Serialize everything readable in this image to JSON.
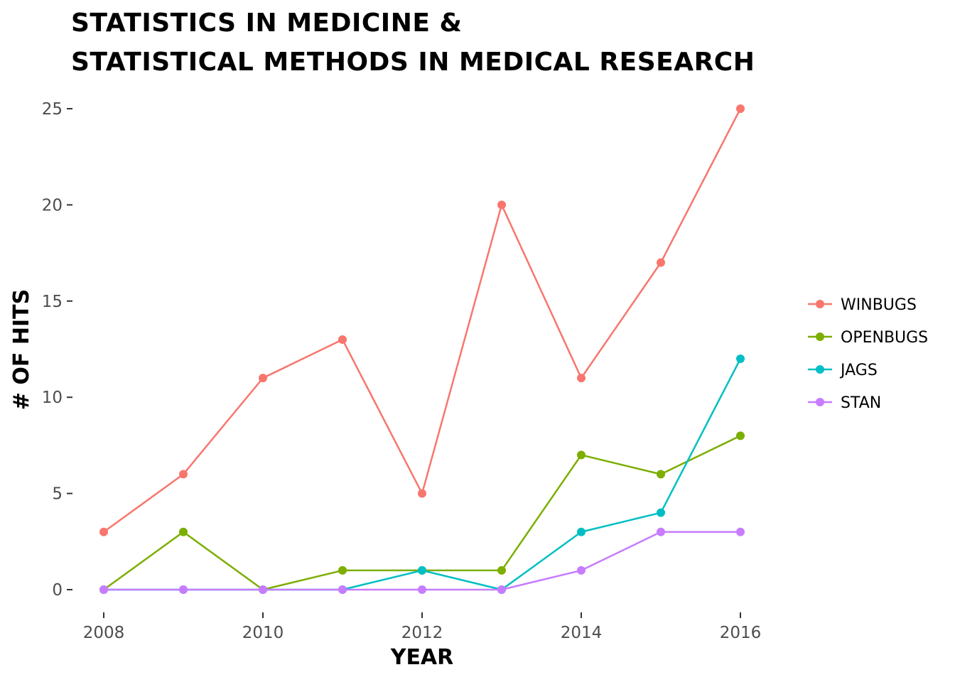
{
  "chart_data": {
    "type": "line",
    "title_lines": [
      "STATISTICS IN MEDICINE &",
      "STATISTICAL METHODS IN MEDICAL RESEARCH"
    ],
    "xlabel": "YEAR",
    "ylabel": "# OF HITS",
    "x": [
      2008,
      2009,
      2010,
      2011,
      2012,
      2013,
      2014,
      2015,
      2016
    ],
    "x_ticks": [
      2008,
      2010,
      2012,
      2014,
      2016
    ],
    "y_ticks": [
      0,
      5,
      10,
      15,
      20,
      25
    ],
    "xlim": [
      2008,
      2016
    ],
    "ylim": [
      0,
      25
    ],
    "grid": false,
    "legend_position": "right",
    "series": [
      {
        "name": "WINBUGS",
        "color": "#F8766D",
        "values": [
          3,
          6,
          11,
          13,
          5,
          20,
          11,
          17,
          25
        ]
      },
      {
        "name": "OPENBUGS",
        "color": "#7CAE00",
        "values": [
          0,
          3,
          0,
          1,
          1,
          1,
          7,
          6,
          8
        ]
      },
      {
        "name": "JAGS",
        "color": "#00BFC4",
        "values": [
          0,
          0,
          0,
          0,
          1,
          0,
          3,
          4,
          12
        ]
      },
      {
        "name": "STAN",
        "color": "#C77CFF",
        "values": [
          0,
          0,
          0,
          0,
          0,
          0,
          1,
          3,
          3
        ]
      }
    ]
  }
}
